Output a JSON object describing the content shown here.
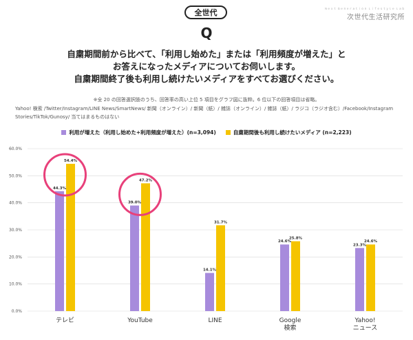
{
  "header": {
    "badge": "全世代",
    "logo_sub": "Ｎｅｘｔ Ｇｅｎｅｒａｔｉｏｎ Ｌｉｆｅｓｔｙｌｅ Ｌａｂ",
    "logo_main": "次世代生活研究所",
    "q_mark": "Q",
    "question_lines": [
      "自粛期間前から比べて、「利用し始めた」または「利用頻度が増えた」と",
      "お答えになったメディアについてお伺いします。",
      "自粛期間終了後も利用し続けたいメディアをすべてお選びください。"
    ],
    "note1": "※全 20 の回答選択肢のうち、回答率の高い上位 5 項目をグラフ図に抜粋。6 位以下の回答項目は省略。",
    "note2": "Yahoo! 検索 /Twitter/Instagram/LINE News/SmartNews/ 新聞（オンライン）/ 新聞（紙）/ 雑誌（オンライン）/ 雑誌（紙）/ ラジコ（ラジオ含む）/Facebook/Instagram Stories/TikTok/Gunosy/ 当てはまるものはない"
  },
  "colors": {
    "series1": "#a78bdc",
    "series2": "#f5c400",
    "circle": "#e8407a",
    "grid": "#d8d8d8"
  },
  "chart_data": {
    "type": "bar",
    "categories": [
      [
        "テレビ"
      ],
      [
        "YouTube"
      ],
      [
        "LINE"
      ],
      [
        "Google",
        "検索"
      ],
      [
        "Yahoo!",
        "ニュース"
      ]
    ],
    "series": [
      {
        "name": "利用が増えた（利用し始めた+利用頻度が増えた）(n=3,094)",
        "values": [
          44.3,
          39.0,
          14.1,
          24.6,
          23.3
        ],
        "labels": [
          "44.3%",
          "39.0%",
          "14.1%",
          "24.6%",
          "23.3%"
        ]
      },
      {
        "name": "自粛期間後も利用し続けたいメディア (n=2,223)",
        "values": [
          54.4,
          47.2,
          31.7,
          25.8,
          24.6
        ],
        "labels": [
          "54.4%",
          "47.2%",
          "31.7%",
          "25.8%",
          "24.6%"
        ]
      }
    ],
    "yticks": [
      0,
      10,
      20,
      30,
      40,
      50,
      60
    ],
    "ytick_labels": [
      "0.0%",
      "10.0%",
      "20.0%",
      "30.0%",
      "40.0%",
      "50.0%",
      "60.0%"
    ],
    "ylim": [
      0,
      60
    ],
    "grid": true,
    "legend": "top",
    "highlighted_categories": [
      0,
      1
    ]
  }
}
